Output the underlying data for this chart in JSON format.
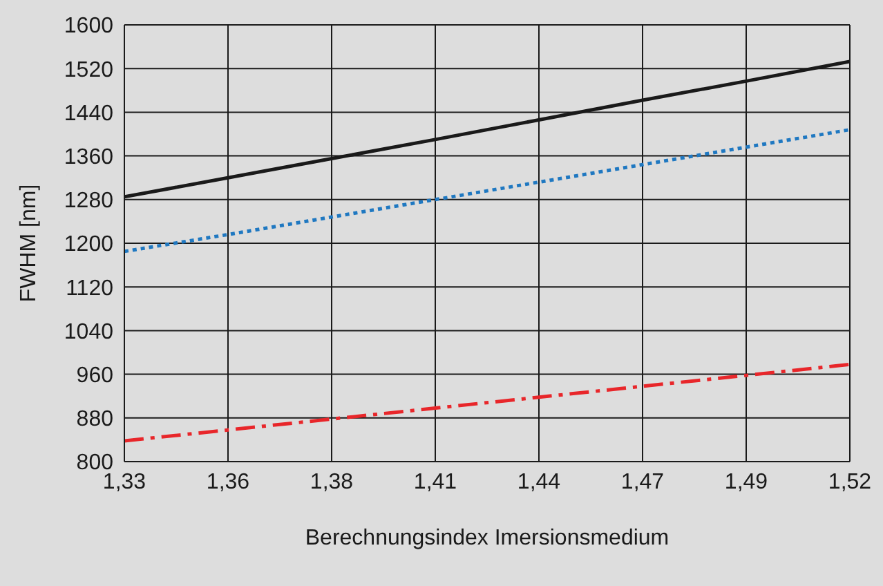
{
  "chart_data": {
    "type": "line",
    "xlabel": "Berechnungsindex Imersionsmedium",
    "ylabel": "FWHM [nm]",
    "categories": [
      "1,33",
      "1,36",
      "1,38",
      "1,41",
      "1,44",
      "1,47",
      "1,49",
      "1,52"
    ],
    "series": [
      {
        "color": "#1a1a1a",
        "line_style": "solid",
        "values": [
          1285,
          1320,
          1355,
          1390,
          1426,
          1462,
          1497,
          1533
        ]
      },
      {
        "color": "#1f78c1",
        "line_style": "dotted",
        "values": [
          1185,
          1216,
          1248,
          1280,
          1312,
          1344,
          1376,
          1408
        ]
      },
      {
        "color": "#e8262a",
        "line_style": "dashed",
        "values": [
          838,
          858,
          878,
          898,
          918,
          938,
          958,
          978
        ]
      }
    ],
    "ylim": [
      800,
      1600
    ],
    "yticks": [
      800,
      880,
      960,
      1040,
      1120,
      1200,
      1280,
      1360,
      1440,
      1520,
      1600
    ],
    "grid": true,
    "marker": "none"
  }
}
